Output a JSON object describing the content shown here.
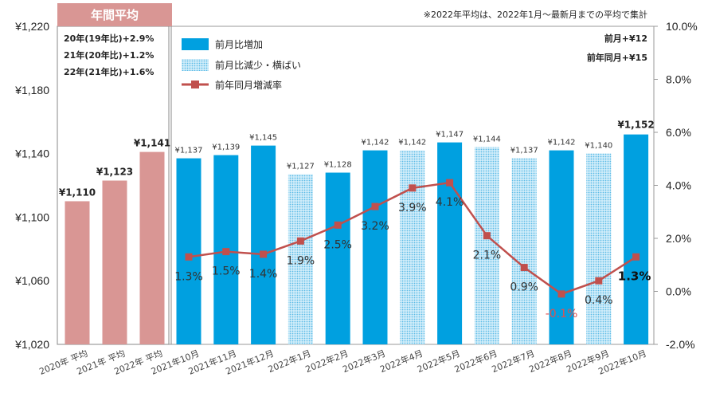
{
  "chart_data": {
    "type": "bar",
    "categories": [
      "2020年 平均",
      "2021年 平均",
      "2022年 平均",
      "2021年10月",
      "2021年11月",
      "2021年12月",
      "2022年1月",
      "2022年2月",
      "2022年3月",
      "2022年4月",
      "2022年5月",
      "2022年6月",
      "2022年7月",
      "2022年8月",
      "2022年9月",
      "2022年10月"
    ],
    "bar_types": [
      "annual",
      "annual",
      "annual",
      "increase",
      "increase",
      "increase",
      "decrease",
      "increase",
      "increase",
      "decrease",
      "increase",
      "decrease",
      "decrease",
      "increase",
      "decrease",
      "increase"
    ],
    "values": [
      1110,
      1123,
      1141,
      1137,
      1139,
      1145,
      1127,
      1128,
      1142,
      1142,
      1147,
      1144,
      1137,
      1142,
      1140,
      1152
    ],
    "bar_labels": [
      "¥1,110",
      "¥1,123",
      "¥1,141",
      "¥1,137",
      "¥1,139",
      "¥1,145",
      "¥1,127",
      "¥1,128",
      "¥1,142",
      "¥1,142",
      "¥1,147",
      "¥1,144",
      "¥1,137",
      "¥1,142",
      "¥1,140",
      "¥1,152"
    ],
    "yoy_rate": [
      1.3,
      1.5,
      1.4,
      1.9,
      2.5,
      3.2,
      3.9,
      4.1,
      2.1,
      0.9,
      -0.1,
      0.4,
      1.3
    ],
    "yoy_labels": [
      "1.3%",
      "1.5%",
      "1.4%",
      "1.9%",
      "2.5%",
      "3.2%",
      "3.9%",
      "4.1%",
      "2.1%",
      "0.9%",
      "-0.1%",
      "0.4%",
      "1.3%"
    ],
    "y_left": {
      "ylim": [
        1020,
        1220
      ],
      "ticks": [
        1020,
        1060,
        1100,
        1140,
        1180,
        1220
      ],
      "tick_labels": [
        "¥1,020",
        "¥1,060",
        "¥1,100",
        "¥1,140",
        "¥1,180",
        "¥1,220"
      ]
    },
    "y_right": {
      "ylim": [
        -2,
        10
      ],
      "ticks": [
        -2,
        0,
        2,
        4,
        6,
        8,
        10
      ],
      "tick_labels": [
        "-2.0%",
        "0.0%",
        "2.0%",
        "4.0%",
        "6.0%",
        "8.0%",
        "10.0%"
      ]
    },
    "legend": [
      {
        "key": "increase",
        "label": "前月比増加"
      },
      {
        "key": "decrease",
        "label": "前月比減少・横ばい"
      },
      {
        "key": "line",
        "label": "前年同月増減率"
      }
    ],
    "legend_position": "top-left",
    "annual_box": {
      "title": "年間平均",
      "lines": [
        "20年(19年比)+2.9%",
        "21年(20年比)+1.2%",
        "22年(21年比)+1.6%"
      ]
    },
    "note": "※2022年平均は、2022年1月～最新月までの平均で集計",
    "summary": [
      "前月+¥12",
      "前年同月+¥15"
    ]
  },
  "colors": {
    "annual": "#d99694",
    "increase": "#00a0e0",
    "decrease_dot": "#5cbbe6",
    "decrease_bg": "#d3eefa",
    "line": "#c0504d",
    "annual_header": "#d99694"
  }
}
